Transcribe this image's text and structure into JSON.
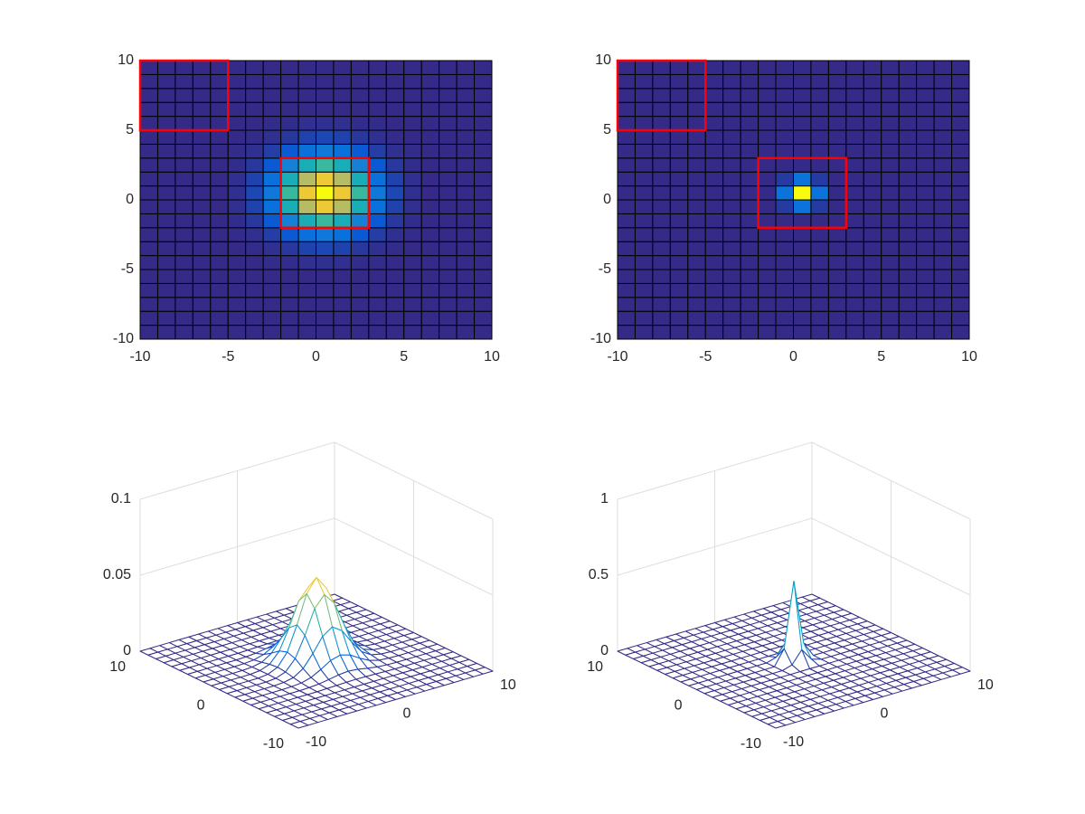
{
  "chart_data": [
    {
      "type": "surface",
      "colormap": "parula",
      "x": [
        -10,
        -9,
        -8,
        -7,
        -6,
        -5,
        -4,
        -3,
        -2,
        -1,
        0,
        1,
        2,
        3,
        4,
        5,
        6,
        7,
        8,
        9,
        10
      ],
      "y": [
        -10,
        -9,
        -8,
        -7,
        -6,
        -5,
        -4,
        -3,
        -2,
        -1,
        0,
        1,
        2,
        3,
        4,
        5,
        6,
        7,
        8,
        9,
        10
      ],
      "z": [
        [
          0,
          0,
          0,
          0,
          0,
          0,
          0,
          0,
          0,
          0,
          0,
          0,
          0,
          0,
          0,
          0,
          0,
          0,
          0,
          0,
          0
        ],
        [
          0,
          0,
          0,
          0,
          0,
          0,
          0,
          0,
          0,
          0,
          0,
          0,
          0,
          0,
          0,
          0,
          0,
          0,
          0,
          0,
          0
        ],
        [
          0,
          0,
          0,
          0,
          0,
          0,
          0,
          0,
          0,
          0,
          0,
          0,
          0,
          0,
          0,
          0,
          0,
          0,
          0,
          0,
          0
        ],
        [
          0,
          0,
          0,
          0,
          0,
          0,
          0,
          0,
          0,
          0,
          0,
          0,
          0,
          0,
          0,
          0,
          0,
          0,
          0,
          0,
          0
        ],
        [
          0,
          0,
          0,
          0,
          0,
          0,
          0,
          0,
          0,
          0,
          0,
          0,
          0,
          0,
          0,
          0,
          0,
          0,
          0,
          0,
          0
        ],
        [
          0,
          0,
          0,
          0,
          0,
          0,
          0,
          0.0002,
          0.0004,
          0.0006,
          0.0007,
          0.0006,
          0.0004,
          0.0002,
          0,
          0,
          0,
          0,
          0,
          0,
          0
        ],
        [
          0,
          0,
          0,
          0,
          0,
          0,
          0.0002,
          0.0007,
          0.0017,
          0.0029,
          0.0035,
          0.0029,
          0.0017,
          0.0007,
          0.0002,
          0,
          0,
          0,
          0,
          0,
          0
        ],
        [
          0,
          0,
          0,
          0,
          0,
          0.0002,
          0.0007,
          0.0024,
          0.0058,
          0.0098,
          0.0116,
          0.0098,
          0.0058,
          0.0024,
          0.0007,
          0.0002,
          0,
          0,
          0,
          0,
          0
        ],
        [
          0,
          0,
          0,
          0,
          0,
          0.0004,
          0.0017,
          0.0058,
          0.0138,
          0.0232,
          0.0276,
          0.0232,
          0.0138,
          0.0058,
          0.0017,
          0.0004,
          0,
          0,
          0,
          0,
          0
        ],
        [
          0,
          0,
          0,
          0,
          0,
          0.0006,
          0.0029,
          0.0098,
          0.0232,
          0.039,
          0.0463,
          0.039,
          0.0232,
          0.0098,
          0.0029,
          0.0006,
          0,
          0,
          0,
          0,
          0
        ],
        [
          0,
          0,
          0,
          0,
          0,
          0.0007,
          0.0035,
          0.0116,
          0.0276,
          0.0463,
          0.0551,
          0.0463,
          0.0276,
          0.0116,
          0.0035,
          0.0007,
          0,
          0,
          0,
          0,
          0
        ],
        [
          0,
          0,
          0,
          0,
          0,
          0.0006,
          0.0029,
          0.0098,
          0.0232,
          0.039,
          0.0463,
          0.039,
          0.0232,
          0.0098,
          0.0029,
          0.0006,
          0,
          0,
          0,
          0,
          0
        ],
        [
          0,
          0,
          0,
          0,
          0,
          0.0004,
          0.0017,
          0.0058,
          0.0138,
          0.0232,
          0.0276,
          0.0232,
          0.0138,
          0.0058,
          0.0017,
          0.0004,
          0,
          0,
          0,
          0,
          0
        ],
        [
          0,
          0,
          0,
          0,
          0,
          0.0002,
          0.0007,
          0.0024,
          0.0058,
          0.0098,
          0.0116,
          0.0098,
          0.0058,
          0.0024,
          0.0007,
          0.0002,
          0,
          0,
          0,
          0,
          0
        ],
        [
          0,
          0,
          0,
          0,
          0,
          0,
          0.0002,
          0.0007,
          0.0017,
          0.0029,
          0.0035,
          0.0029,
          0.0017,
          0.0007,
          0.0002,
          0,
          0,
          0,
          0,
          0,
          0
        ],
        [
          0,
          0,
          0,
          0,
          0,
          0,
          0,
          0.0002,
          0.0004,
          0.0006,
          0.0007,
          0.0006,
          0.0004,
          0.0002,
          0,
          0,
          0,
          0,
          0,
          0,
          0
        ],
        [
          0,
          0,
          0,
          0,
          0,
          0,
          0,
          0,
          0,
          0,
          0,
          0,
          0,
          0,
          0,
          0,
          0,
          0,
          0,
          0,
          0
        ],
        [
          0,
          0,
          0,
          0,
          0,
          0,
          0,
          0,
          0,
          0,
          0,
          0,
          0,
          0,
          0,
          0,
          0,
          0,
          0,
          0,
          0
        ],
        [
          0,
          0,
          0,
          0,
          0,
          0,
          0,
          0,
          0,
          0,
          0,
          0,
          0,
          0,
          0,
          0,
          0,
          0,
          0,
          0,
          0
        ],
        [
          0,
          0,
          0,
          0,
          0,
          0,
          0,
          0,
          0,
          0,
          0,
          0,
          0,
          0,
          0,
          0,
          0,
          0,
          0,
          0,
          0
        ],
        [
          0,
          0,
          0,
          0,
          0,
          0,
          0,
          0,
          0,
          0,
          0,
          0,
          0,
          0,
          0,
          0,
          0,
          0,
          0,
          0,
          0
        ]
      ],
      "heatmap": {
        "xlim": [
          -10,
          10
        ],
        "ylim": [
          -10,
          10
        ],
        "xticks": [
          -10,
          -5,
          0,
          5,
          10
        ],
        "yticks": [
          -10,
          -5,
          0,
          5,
          10
        ],
        "rectangles": [
          {
            "x": [
              -10,
              -5
            ],
            "y": [
              5,
              10
            ],
            "color": "#ff0000"
          },
          {
            "x": [
              -2,
              3
            ],
            "y": [
              -2,
              3
            ],
            "color": "#ff0000"
          }
        ]
      },
      "mesh": {
        "xlim": [
          -10,
          10
        ],
        "ylim": [
          -10,
          10
        ],
        "zlim": [
          0,
          0.1
        ],
        "xticks": [
          -10,
          0,
          10
        ],
        "yticks": [
          -10,
          0,
          10
        ],
        "zticks": [
          0,
          0.05,
          0.1
        ],
        "grid": true
      }
    },
    {
      "type": "surface",
      "colormap": "parula",
      "x": [
        -10,
        -9,
        -8,
        -7,
        -6,
        -5,
        -4,
        -3,
        -2,
        -1,
        0,
        1,
        2,
        3,
        4,
        5,
        6,
        7,
        8,
        9,
        10
      ],
      "y": [
        -10,
        -9,
        -8,
        -7,
        -6,
        -5,
        -4,
        -3,
        -2,
        -1,
        0,
        1,
        2,
        3,
        4,
        5,
        6,
        7,
        8,
        9,
        10
      ],
      "z": [
        [
          0,
          0,
          0,
          0,
          0,
          0,
          0,
          0,
          0,
          0,
          0,
          0,
          0,
          0,
          0,
          0,
          0,
          0,
          0,
          0,
          0
        ],
        [
          0,
          0,
          0,
          0,
          0,
          0,
          0,
          0,
          0,
          0,
          0,
          0,
          0,
          0,
          0,
          0,
          0,
          0,
          0,
          0,
          0
        ],
        [
          0,
          0,
          0,
          0,
          0,
          0,
          0,
          0,
          0,
          0,
          0,
          0,
          0,
          0,
          0,
          0,
          0,
          0,
          0,
          0,
          0
        ],
        [
          0,
          0,
          0,
          0,
          0,
          0,
          0,
          0,
          0,
          0,
          0,
          0,
          0,
          0,
          0,
          0,
          0,
          0,
          0,
          0,
          0
        ],
        [
          0,
          0,
          0,
          0,
          0,
          0,
          0,
          0,
          0,
          0,
          0,
          0,
          0,
          0,
          0,
          0,
          0,
          0,
          0,
          0,
          0
        ],
        [
          0,
          0,
          0,
          0,
          0,
          0,
          0,
          0,
          0,
          0,
          0,
          0,
          0,
          0,
          0,
          0,
          0,
          0,
          0,
          0,
          0
        ],
        [
          0,
          0,
          0,
          0,
          0,
          0,
          0,
          0,
          0,
          0,
          0,
          0,
          0,
          0,
          0,
          0,
          0,
          0,
          0,
          0,
          0
        ],
        [
          0,
          0,
          0,
          0,
          0,
          0,
          0,
          0,
          0,
          0,
          0,
          0,
          0,
          0,
          0,
          0,
          0,
          0,
          0,
          0,
          0
        ],
        [
          0,
          0,
          0,
          0,
          0,
          0,
          0,
          0,
          0,
          0.0001,
          0.0007,
          0.0001,
          0,
          0,
          0,
          0,
          0,
          0,
          0,
          0,
          0
        ],
        [
          0,
          0,
          0,
          0,
          0,
          0,
          0,
          0,
          0.0001,
          0.0193,
          0.1007,
          0.0193,
          0.0001,
          0,
          0,
          0,
          0,
          0,
          0,
          0,
          0
        ],
        [
          0,
          0,
          0,
          0,
          0,
          0,
          0,
          0,
          0.0007,
          0.1007,
          0.526,
          0.1007,
          0.0007,
          0,
          0,
          0,
          0,
          0,
          0,
          0,
          0
        ],
        [
          0,
          0,
          0,
          0,
          0,
          0,
          0,
          0,
          0.0001,
          0.0193,
          0.1007,
          0.0193,
          0.0001,
          0,
          0,
          0,
          0,
          0,
          0,
          0,
          0
        ],
        [
          0,
          0,
          0,
          0,
          0,
          0,
          0,
          0,
          0,
          0.0001,
          0.0007,
          0.0001,
          0,
          0,
          0,
          0,
          0,
          0,
          0,
          0,
          0
        ],
        [
          0,
          0,
          0,
          0,
          0,
          0,
          0,
          0,
          0,
          0,
          0,
          0,
          0,
          0,
          0,
          0,
          0,
          0,
          0,
          0,
          0
        ],
        [
          0,
          0,
          0,
          0,
          0,
          0,
          0,
          0,
          0,
          0,
          0,
          0,
          0,
          0,
          0,
          0,
          0,
          0,
          0,
          0,
          0
        ],
        [
          0,
          0,
          0,
          0,
          0,
          0,
          0,
          0,
          0,
          0,
          0,
          0,
          0,
          0,
          0,
          0,
          0,
          0,
          0,
          0,
          0
        ],
        [
          0,
          0,
          0,
          0,
          0,
          0,
          0,
          0,
          0,
          0,
          0,
          0,
          0,
          0,
          0,
          0,
          0,
          0,
          0,
          0,
          0
        ],
        [
          0,
          0,
          0,
          0,
          0,
          0,
          0,
          0,
          0,
          0,
          0,
          0,
          0,
          0,
          0,
          0,
          0,
          0,
          0,
          0,
          0
        ],
        [
          0,
          0,
          0,
          0,
          0,
          0,
          0,
          0,
          0,
          0,
          0,
          0,
          0,
          0,
          0,
          0,
          0,
          0,
          0,
          0,
          0
        ],
        [
          0,
          0,
          0,
          0,
          0,
          0,
          0,
          0,
          0,
          0,
          0,
          0,
          0,
          0,
          0,
          0,
          0,
          0,
          0,
          0,
          0
        ],
        [
          0,
          0,
          0,
          0,
          0,
          0,
          0,
          0,
          0,
          0,
          0,
          0,
          0,
          0,
          0,
          0,
          0,
          0,
          0,
          0,
          0
        ]
      ],
      "heatmap": {
        "xlim": [
          -10,
          10
        ],
        "ylim": [
          -10,
          10
        ],
        "xticks": [
          -10,
          -5,
          0,
          5,
          10
        ],
        "yticks": [
          -10,
          -5,
          0,
          5,
          10
        ],
        "rectangles": [
          {
            "x": [
              -10,
              -5
            ],
            "y": [
              5,
              10
            ],
            "color": "#ff0000"
          },
          {
            "x": [
              -2,
              3
            ],
            "y": [
              -2,
              3
            ],
            "color": "#ff0000"
          }
        ]
      },
      "mesh": {
        "xlim": [
          -10,
          10
        ],
        "ylim": [
          -10,
          10
        ],
        "zlim": [
          0,
          1
        ],
        "xticks": [
          -10,
          0,
          10
        ],
        "yticks": [
          -10,
          0,
          10
        ],
        "zticks": [
          0,
          0.5,
          1
        ],
        "grid": true
      }
    }
  ]
}
